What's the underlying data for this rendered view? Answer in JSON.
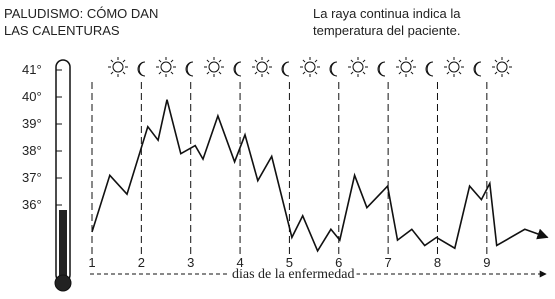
{
  "chart_data": {
    "type": "line",
    "title": [
      "PALUDISMO:  CÓMO DAN",
      "LAS CALENTURAS"
    ],
    "note": [
      "La raya continua indica la",
      "temperatura del paciente."
    ],
    "xlabel": "días de la enfermedad",
    "color": "#111111",
    "x": [
      1,
      1.36,
      1.71,
      2.13,
      2.34,
      2.52,
      2.8,
      3.09,
      3.25,
      3.55,
      3.89,
      4.1,
      4.36,
      4.64,
      5.05,
      5.27,
      5.57,
      5.84,
      6.02,
      6.32,
      6.57,
      6.99,
      7.19,
      7.48,
      7.74,
      7.98,
      8.35,
      8.65,
      8.89,
      9.06,
      9.2,
      9.77,
      10.23
    ],
    "values": [
      35.0,
      37.1,
      36.4,
      38.9,
      38.4,
      39.9,
      37.9,
      38.2,
      37.7,
      39.3,
      37.6,
      38.6,
      36.9,
      37.8,
      34.8,
      35.6,
      34.3,
      35.1,
      34.7,
      37.1,
      35.9,
      36.7,
      34.7,
      35.1,
      34.5,
      34.8,
      34.4,
      36.7,
      36.2,
      36.8,
      34.5,
      35.1,
      34.8
    ],
    "xlim": [
      1,
      10.3
    ],
    "xticks": [
      1,
      2,
      3,
      4,
      5,
      6,
      7,
      8,
      9
    ],
    "ylim": [
      34,
      41
    ],
    "yticks": [
      {
        "value": 41,
        "label": "41°"
      },
      {
        "value": 40,
        "label": "40°"
      },
      {
        "value": 39,
        "label": "39°"
      },
      {
        "value": 38,
        "label": "38°"
      },
      {
        "value": 37,
        "label": "37°"
      },
      {
        "value": 36,
        "label": "36°"
      }
    ],
    "grid": true
  }
}
